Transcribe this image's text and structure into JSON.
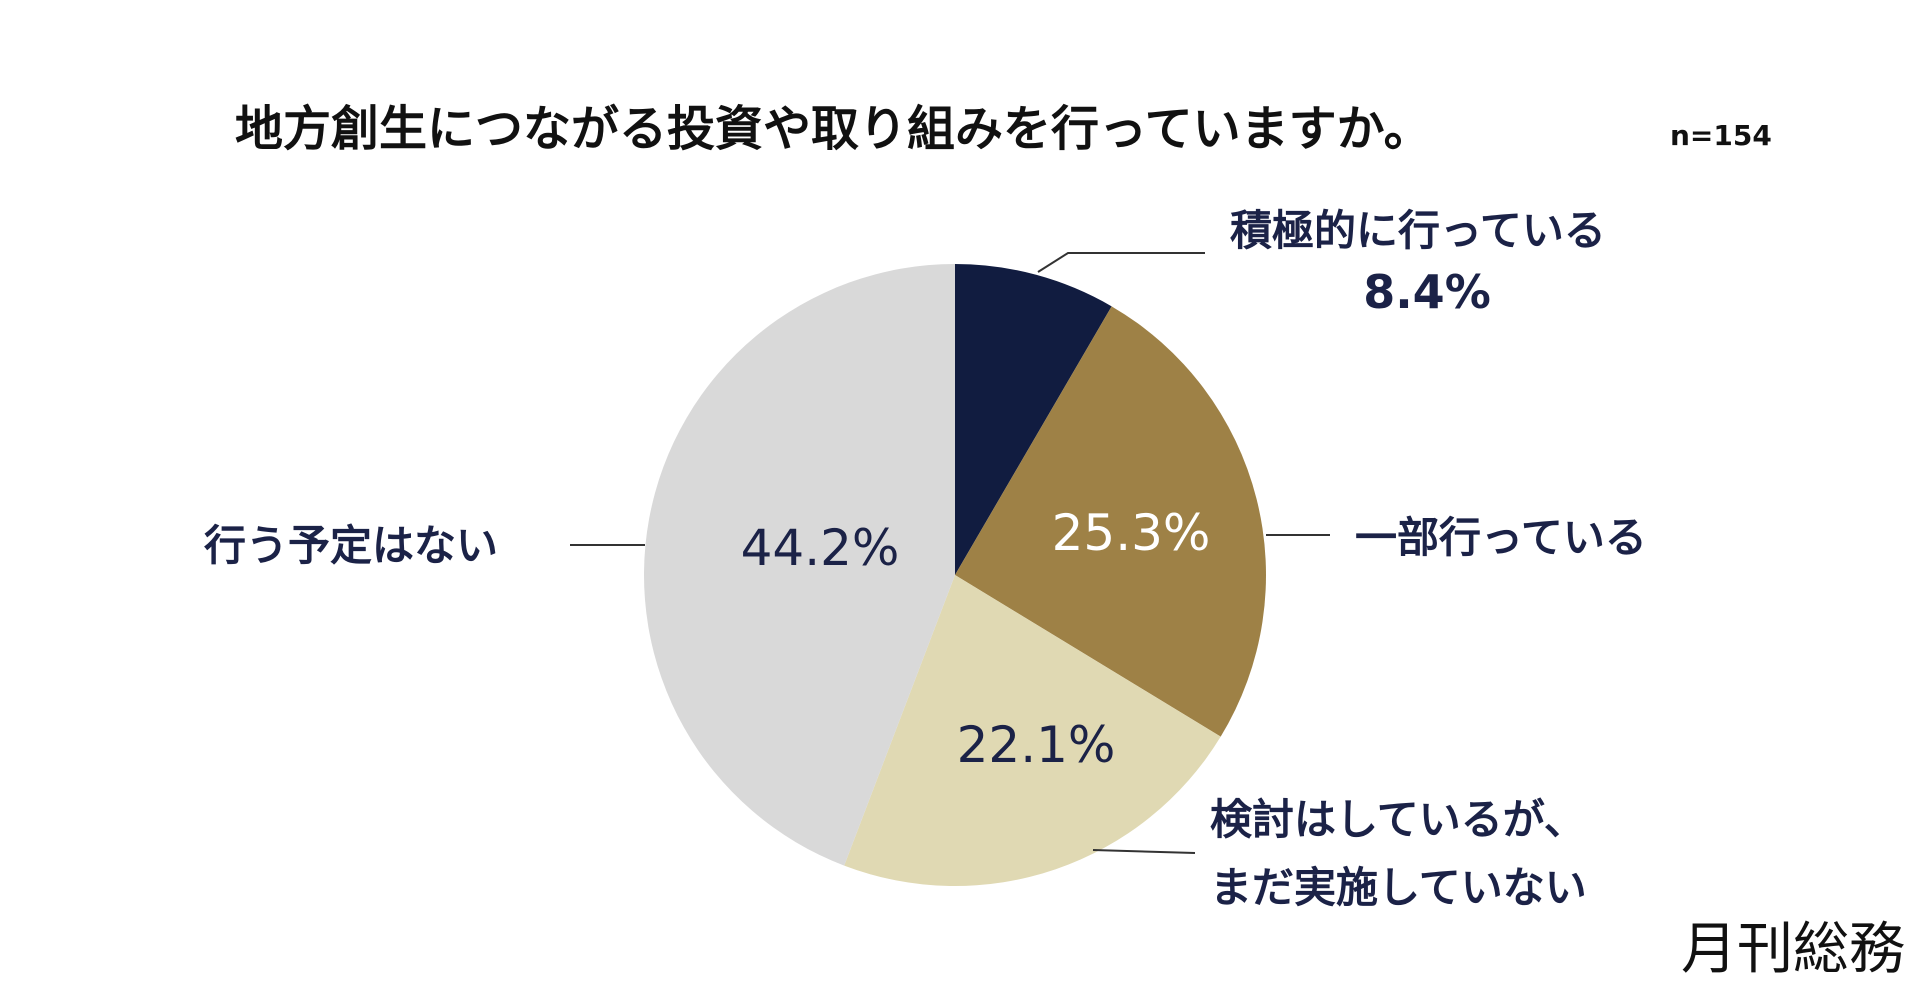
{
  "chart_data": {
    "type": "pie",
    "title": "地方創生につながる投資や取り組みを行っていますか。",
    "sample_size": "n=154",
    "slices": [
      {
        "label_lines": [
          "積極的に行っている"
        ],
        "percent_text": "8.4%",
        "value": 8.4,
        "color": "#111c40"
      },
      {
        "label_lines": [
          "一部行っている"
        ],
        "percent_text": "25.3%",
        "value": 25.3,
        "color": "#9e8146"
      },
      {
        "label_lines": [
          "検討はしているが、",
          "まだ実施していない"
        ],
        "percent_text": "22.1%",
        "value": 22.1,
        "color": "#e0d9b3"
      },
      {
        "label_lines": [
          "行う予定はない"
        ],
        "percent_text": "44.2%",
        "value": 44.2,
        "color": "#d9d9d9"
      }
    ],
    "legend": "none"
  },
  "brand": "月刊総務"
}
